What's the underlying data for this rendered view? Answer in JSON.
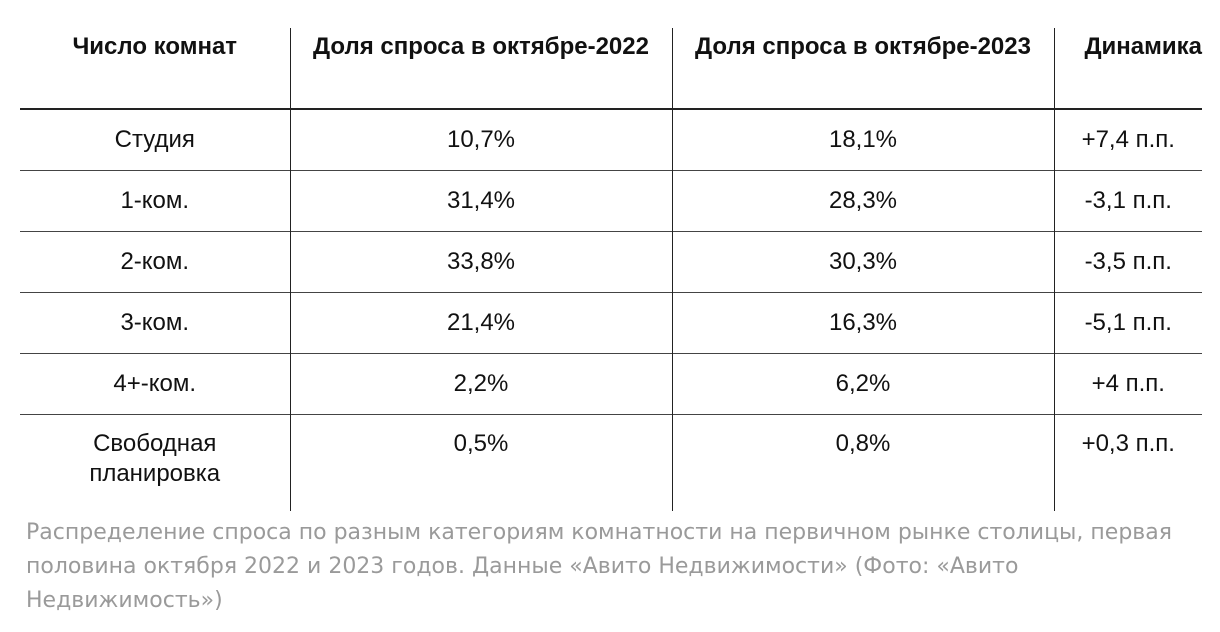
{
  "table": {
    "headers": [
      "Число комнат",
      "Доля спроса в октябре-2022",
      "Доля спроса в октябре-2023",
      "Динамика"
    ],
    "rows": [
      [
        "Студия",
        "10,7%",
        "18,1%",
        "+7,4 п.п."
      ],
      [
        "1-ком.",
        "31,4%",
        "28,3%",
        "-3,1 п.п."
      ],
      [
        "2-ком.",
        "33,8%",
        "30,3%",
        "-3,5 п.п."
      ],
      [
        "3-ком.",
        "21,4%",
        "16,3%",
        "-5,1 п.п."
      ],
      [
        "4+-ком.",
        "2,2%",
        "6,2%",
        "+4 п.п."
      ],
      [
        "Свободная планировка",
        "0,5%",
        "0,8%",
        "+0,3 п.п."
      ]
    ]
  },
  "caption": "Распределение спроса по разным категориям комнатности на первичном рынке столицы, первая половина октября 2022 и 2023 годов. Данные «Авито Недвижимости» (Фото: «Авито Недвижимость»)"
}
